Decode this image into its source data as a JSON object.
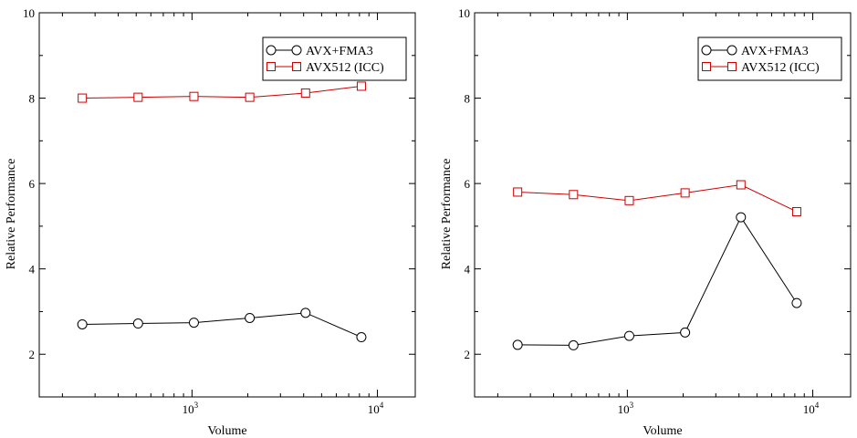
{
  "chart_data": [
    {
      "type": "line",
      "xscale": "log",
      "xlabel": "Volume",
      "ylabel": "Relative Performance",
      "xlim": [
        150,
        16000
      ],
      "ylim": [
        1,
        10
      ],
      "yticks": [
        2,
        4,
        6,
        8,
        10
      ],
      "xticks": [
        1000,
        10000
      ],
      "xtick_labels": [
        {
          "base": "10",
          "exp": "3"
        },
        {
          "base": "10",
          "exp": "4"
        }
      ],
      "grid": false,
      "legend": "top-right",
      "x": [
        256,
        512,
        1024,
        2048,
        4096,
        8192
      ],
      "series": [
        {
          "name": "AVX+FMA3",
          "marker": "circle",
          "color": "#000000",
          "values": [
            2.7,
            2.72,
            2.74,
            2.85,
            2.97,
            2.4
          ]
        },
        {
          "name": "AVX512 (ICC)",
          "marker": "square",
          "color": "#cc0000",
          "values": [
            8.0,
            8.02,
            8.04,
            8.02,
            8.12,
            8.28
          ]
        }
      ]
    },
    {
      "type": "line",
      "xscale": "log",
      "xlabel": "Volume",
      "ylabel": "Relative Performance",
      "xlim": [
        150,
        16000
      ],
      "ylim": [
        1,
        10
      ],
      "yticks": [
        2,
        4,
        6,
        8,
        10
      ],
      "xticks": [
        1000,
        10000
      ],
      "xtick_labels": [
        {
          "base": "10",
          "exp": "3"
        },
        {
          "base": "10",
          "exp": "4"
        }
      ],
      "grid": false,
      "legend": "top-right",
      "x": [
        256,
        512,
        1024,
        2048,
        4096,
        8192
      ],
      "series": [
        {
          "name": "AVX+FMA3",
          "marker": "circle",
          "color": "#000000",
          "values": [
            2.22,
            2.21,
            2.43,
            2.51,
            5.21,
            3.2
          ]
        },
        {
          "name": "AVX512 (ICC)",
          "marker": "square",
          "color": "#cc0000",
          "values": [
            5.8,
            5.74,
            5.6,
            5.78,
            5.97,
            5.34
          ]
        }
      ]
    }
  ]
}
